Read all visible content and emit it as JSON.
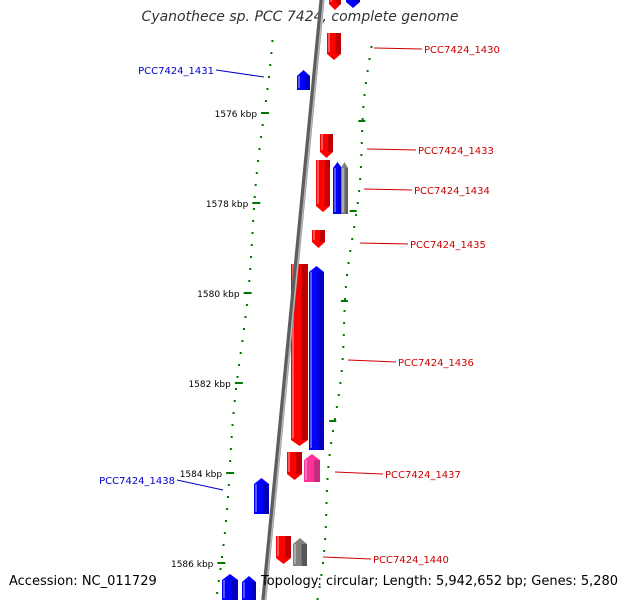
{
  "title": "Cyanothece sp. PCC 7424, complete genome",
  "footer": {
    "accession": "Accession: NC_011729",
    "summary": "Topology: circular; Length: 5,942,652 bp; Genes: 5,280"
  },
  "colors": {
    "forward_gene": "#ff0000",
    "reverse_gene": "#0000ff",
    "forward_label": "#cc0000",
    "reverse_label": "#0000cc",
    "rna_gene": "#ff3399",
    "pseudo_gene": "#808080",
    "gc_tick": "#007700",
    "backbone": "#888888"
  },
  "scale_labels": [
    {
      "kbp": 1576,
      "text": "1576 kbp"
    },
    {
      "kbp": 1578,
      "text": "1578 kbp"
    },
    {
      "kbp": 1580,
      "text": "1580 kbp"
    },
    {
      "kbp": 1582,
      "text": "1582 kbp"
    },
    {
      "kbp": 1584,
      "text": "1584 kbp"
    },
    {
      "kbp": 1586,
      "text": "1586 kbp"
    }
  ],
  "gene_labels": [
    {
      "text": "PCC7424_1430",
      "strand": "forward"
    },
    {
      "text": "PCC7424_1431",
      "strand": "reverse"
    },
    {
      "text": "PCC7424_1433",
      "strand": "forward"
    },
    {
      "text": "PCC7424_1434",
      "strand": "forward"
    },
    {
      "text": "PCC7424_1435",
      "strand": "forward"
    },
    {
      "text": "PCC7424_1436",
      "strand": "forward"
    },
    {
      "text": "PCC7424_1437",
      "strand": "forward"
    },
    {
      "text": "PCC7424_1438",
      "strand": "reverse"
    },
    {
      "text": "PCC7424_1440",
      "strand": "forward"
    }
  ]
}
